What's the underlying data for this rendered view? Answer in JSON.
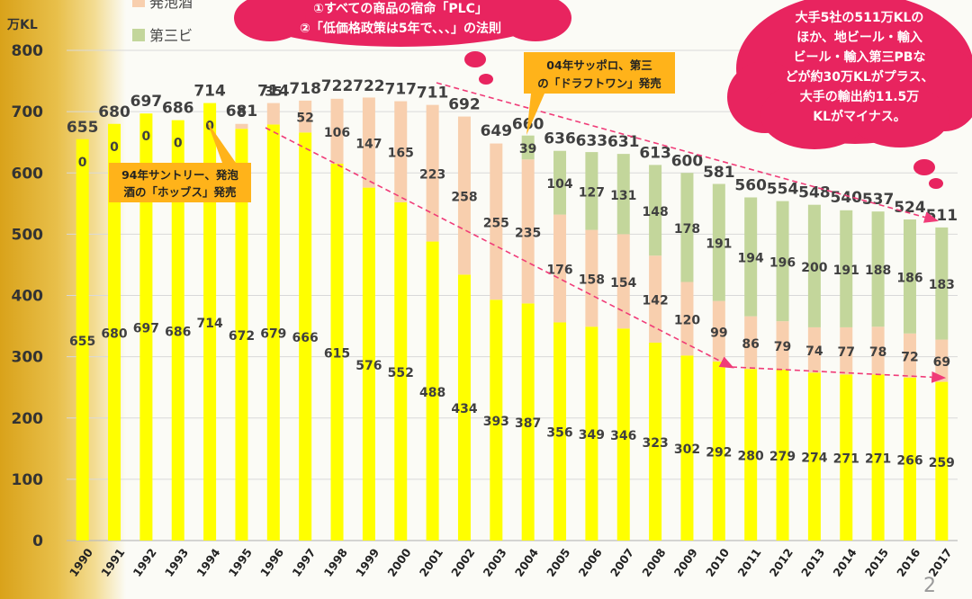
{
  "chart_data": {
    "type": "bar",
    "stacked": true,
    "ylabel": "万KL",
    "ylim": [
      0,
      800
    ],
    "yticks": [
      0,
      100,
      200,
      300,
      400,
      500,
      600,
      700,
      800
    ],
    "grid": true,
    "legend_position": "top-left",
    "categories": [
      "1990",
      "1991",
      "1992",
      "1993",
      "1994",
      "1995",
      "1996",
      "1997",
      "1998",
      "1999",
      "2000",
      "2001",
      "2002",
      "2003",
      "2004",
      "2005",
      "2006",
      "2007",
      "2008",
      "2009",
      "2010",
      "2011",
      "2012",
      "2013",
      "2014",
      "2015",
      "2016",
      "2017"
    ],
    "series": [
      {
        "name": "",
        "color": "#ffff00",
        "values": [
          655,
          680,
          697,
          686,
          714,
          672,
          679,
          666,
          615,
          576,
          552,
          488,
          434,
          393,
          387,
          356,
          349,
          346,
          323,
          302,
          292,
          280,
          279,
          274,
          271,
          271,
          266,
          259
        ]
      },
      {
        "name": "発泡酒",
        "color": "#f8cfae",
        "values": [
          0,
          0,
          0,
          0,
          0,
          8,
          35,
          52,
          106,
          147,
          165,
          223,
          258,
          255,
          235,
          176,
          158,
          154,
          142,
          120,
          99,
          86,
          79,
          74,
          77,
          78,
          72,
          69
        ]
      },
      {
        "name": "第三ビ",
        "color": "#c3d69b",
        "values": [
          0,
          0,
          0,
          0,
          0,
          0,
          0,
          0,
          0,
          0,
          0,
          0,
          0,
          0,
          39,
          104,
          127,
          131,
          148,
          178,
          191,
          194,
          196,
          200,
          191,
          188,
          186,
          183
        ]
      }
    ],
    "totals": [
      655,
      680,
      697,
      686,
      714,
      681,
      714,
      718,
      722,
      722,
      717,
      711,
      692,
      649,
      660,
      636,
      633,
      631,
      613,
      600,
      581,
      560,
      554,
      548,
      540,
      537,
      524,
      511
    ],
    "pink_values": [
      "0",
      "0",
      "0",
      "0",
      "0",
      "8",
      "35",
      "52",
      "106",
      "147",
      "165",
      "223",
      "258",
      "255",
      "235",
      "176",
      "158",
      "154",
      "142",
      "120",
      "99",
      "86",
      "79",
      "74",
      "77",
      "78",
      "72",
      "69"
    ],
    "green_values": [
      "",
      "",
      "",
      "",
      "",
      "",
      "",
      "",
      "",
      "",
      "",
      "",
      "",
      "",
      "39",
      "104",
      "127",
      "131",
      "148",
      "178",
      "191",
      "194",
      "196",
      "200",
      "191",
      "188",
      "186",
      "183"
    ],
    "annotations": {
      "note_1994": [
        "94年サントリー、発泡",
        "酒の「ホッブス」発売"
      ],
      "note_2004": [
        "04年サッポロ、第三",
        "の「ドラフトワン」発売"
      ],
      "bubble_top": [
        "①すべての商品の宿命「PLC」",
        "②「低価格政策は5年で、、、」の法則"
      ],
      "bubble_right": [
        "大手5社の511万KLの",
        "ほか、地ビール・輸入",
        "ビール・輸入第三PBな",
        "どが約30万KLがプラス、",
        "大手の輸出約11.5万",
        "KLがマイナス。"
      ]
    },
    "page_number": "2"
  }
}
